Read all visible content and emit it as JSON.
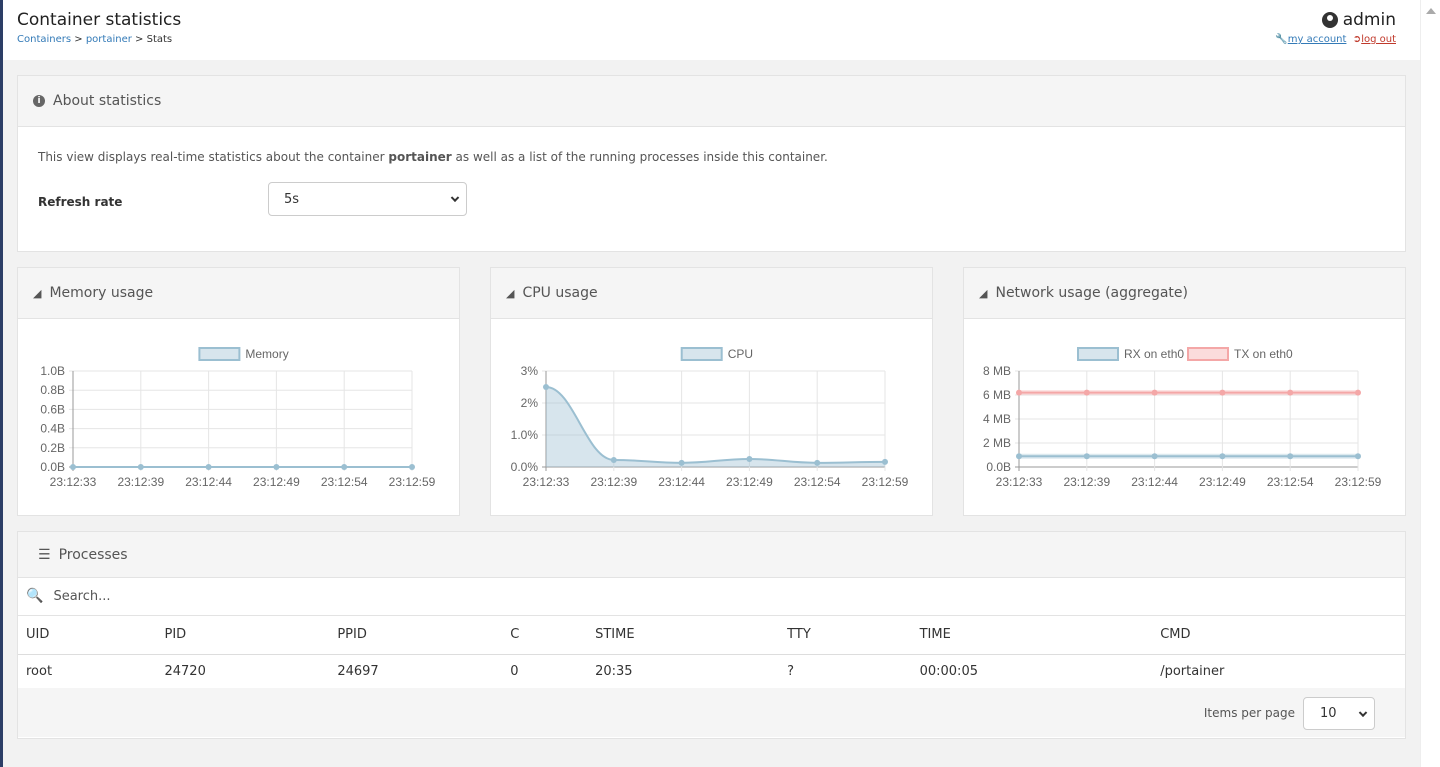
{
  "header": {
    "title": "Container statistics",
    "breadcrumbs": [
      "Containers",
      "portainer",
      "Stats"
    ],
    "user": "admin",
    "my_account": "my account",
    "log_out": "log out"
  },
  "about": {
    "title": "About statistics",
    "text_before": "This view displays real-time statistics about the container ",
    "container": "portainer",
    "text_after": " as well as a list of the running processes inside this container.",
    "refresh_label": "Refresh rate",
    "refresh_value": "5s"
  },
  "charts": {
    "memory": {
      "title": "Memory usage"
    },
    "cpu": {
      "title": "CPU usage"
    },
    "network": {
      "title": "Network usage (aggregate)"
    }
  },
  "chart_data": [
    {
      "type": "line",
      "title": "Memory usage",
      "x": [
        "23:12:33",
        "23:12:39",
        "23:12:44",
        "23:12:49",
        "23:12:54",
        "23:12:59"
      ],
      "ylim": [
        0,
        1.0
      ],
      "yticks": [
        "0.0B",
        "0.2B",
        "0.4B",
        "0.6B",
        "0.8B",
        "1.0B"
      ],
      "yunit": "B",
      "grid": true,
      "legend": "top",
      "series": [
        {
          "name": "Memory",
          "values": [
            0,
            0,
            0,
            0,
            0,
            0
          ],
          "color": "#9bbfd1",
          "fill": true
        }
      ]
    },
    {
      "type": "area",
      "title": "CPU usage",
      "x": [
        "23:12:33",
        "23:12:39",
        "23:12:44",
        "23:12:49",
        "23:12:54",
        "23:12:59"
      ],
      "ylim": [
        0,
        3
      ],
      "yticks": [
        "0.0%",
        "1.0%",
        "2%",
        "3%"
      ],
      "yunit": "%",
      "grid": true,
      "legend": "top",
      "series": [
        {
          "name": "CPU",
          "values": [
            2.5,
            0.22,
            0.13,
            0.25,
            0.13,
            0.16
          ],
          "color": "#9bbfd1",
          "fill": true
        }
      ]
    },
    {
      "type": "line",
      "title": "Network usage (aggregate)",
      "x": [
        "23:12:33",
        "23:12:39",
        "23:12:44",
        "23:12:49",
        "23:12:54",
        "23:12:59"
      ],
      "ylim": [
        0,
        8
      ],
      "yticks": [
        "0.0B",
        "2 MB",
        "4 MB",
        "6 MB",
        "8 MB"
      ],
      "yunit": "MB",
      "grid": true,
      "legend": "top",
      "series": [
        {
          "name": "RX on eth0",
          "values": [
            0.9,
            0.9,
            0.9,
            0.9,
            0.9,
            0.9
          ],
          "color": "#9bbfd1",
          "fill": false
        },
        {
          "name": "TX on eth0",
          "values": [
            6.2,
            6.2,
            6.2,
            6.2,
            6.2,
            6.2
          ],
          "color": "#f4a7a7",
          "fill": false
        }
      ]
    }
  ],
  "processes": {
    "title": "Processes",
    "search_placeholder": "Search...",
    "columns": [
      "UID",
      "PID",
      "PPID",
      "C",
      "STIME",
      "TTY",
      "TIME",
      "CMD"
    ],
    "rows": [
      [
        "root",
        "24720",
        "24697",
        "0",
        "20:35",
        "?",
        "00:00:05",
        "/portainer"
      ]
    ],
    "items_per_page_label": "Items per page",
    "items_per_page": "10"
  }
}
